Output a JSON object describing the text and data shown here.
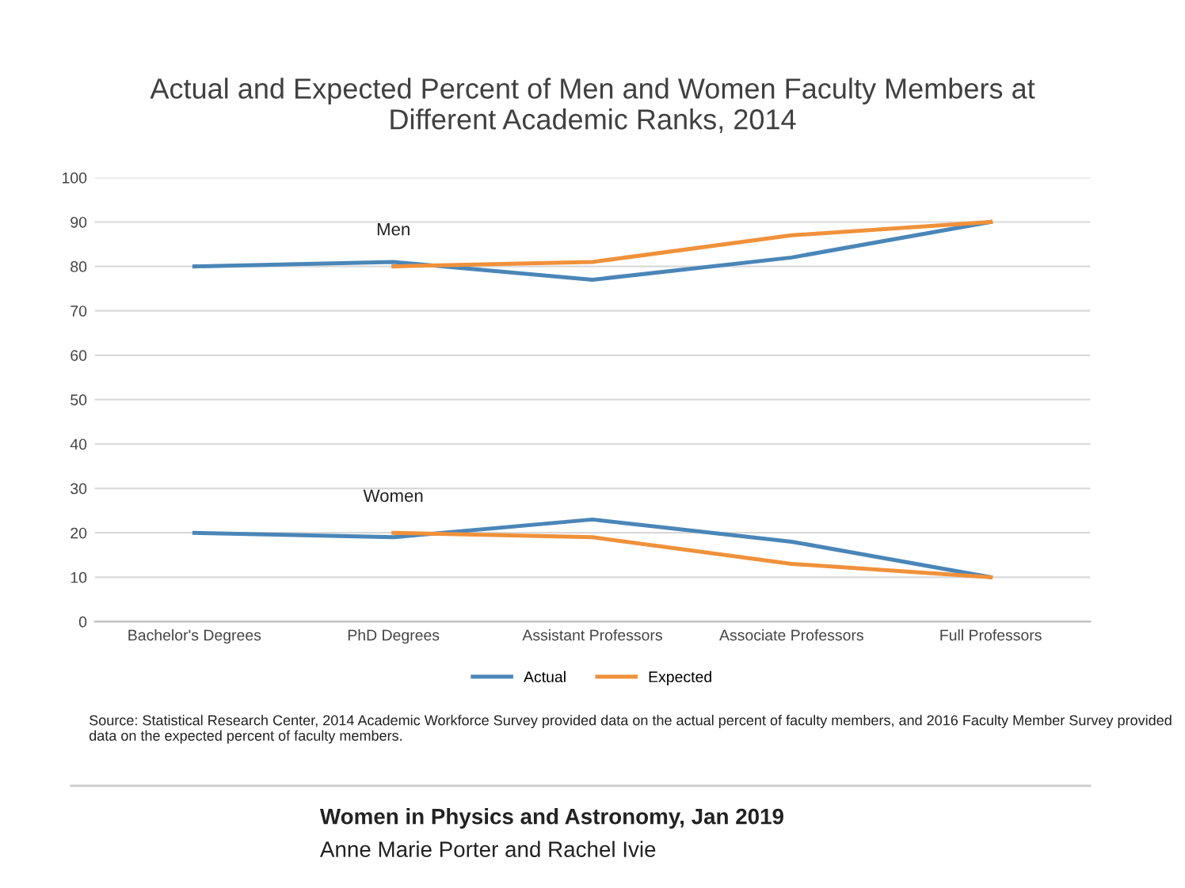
{
  "chart_data": {
    "type": "line",
    "title": "Actual and Expected Percent of Men and Women Faculty Members at\nDifferent Academic Ranks, 2014",
    "categories": [
      "Bachelor's Degrees",
      "PhD Degrees",
      "Assistant Professors",
      "Associate Professors",
      "Full Professors"
    ],
    "series": [
      {
        "name": "Actual",
        "color": "#4a86b8",
        "values": [
          80,
          81,
          77,
          82,
          90
        ]
      },
      {
        "name": "Expected",
        "color": "#f0913a",
        "values": [
          null,
          80,
          81,
          87,
          90
        ]
      },
      {
        "color": "#4a86b8",
        "values": [
          20,
          19,
          23,
          18,
          10
        ]
      },
      {
        "color": "#f0913a",
        "values": [
          null,
          20,
          19,
          13,
          10
        ]
      }
    ],
    "ylim": [
      0,
      100
    ],
    "yticks": [
      0,
      10,
      20,
      30,
      40,
      50,
      60,
      70,
      80,
      90,
      100
    ],
    "grid": "y",
    "legend": "bottom",
    "marker": "none",
    "line_style": "solid",
    "annotations": [
      "Men",
      "Women",
      "Source: Statistical Research Center, 2014 Academic Workforce Survey provided data on the actual percent of faculty members, and 2016 Faculty Member Survey provided data on the expected percent of faculty members.",
      "Women in Physics and Astronomy, Jan 2019",
      "Anne Marie Porter and Rachel Ivie"
    ]
  }
}
